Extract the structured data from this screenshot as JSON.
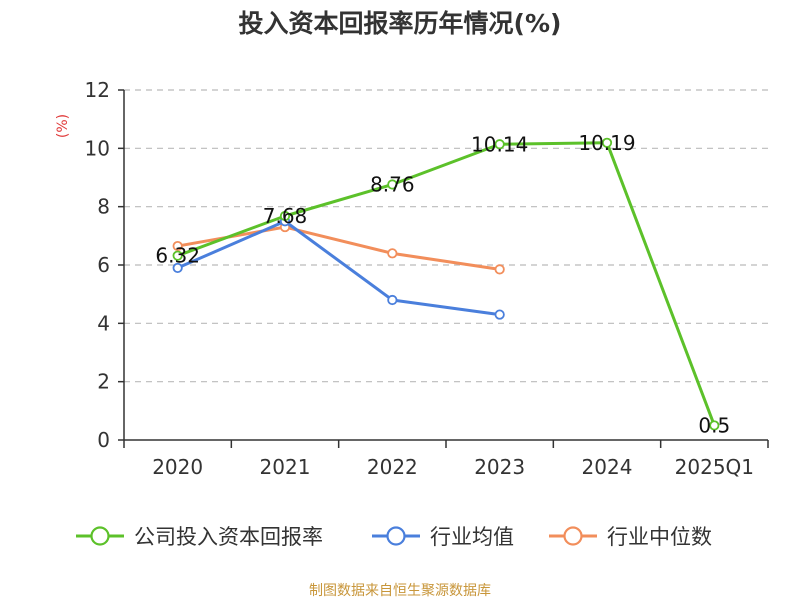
{
  "chart_data": {
    "type": "line",
    "title": "投入资本回报率历年情况(%)",
    "ylabel": "(%)",
    "xlabel": "",
    "categories": [
      "2020",
      "2021",
      "2022",
      "2023",
      "2024",
      "2025Q1"
    ],
    "ylim": [
      0,
      12
    ],
    "yticks": [
      0,
      2,
      4,
      6,
      8,
      10,
      12
    ],
    "grid": true,
    "legend_position": "bottom",
    "series": [
      {
        "name": "公司投入资本回报率",
        "color": "#5cc12a",
        "values": [
          6.32,
          7.68,
          8.76,
          10.14,
          10.19,
          0.5
        ],
        "labels": [
          "6.32",
          "7.68",
          "8.76",
          "10.14",
          "10.19",
          "0.5"
        ]
      },
      {
        "name": "行业均值",
        "color": "#4a7fdc",
        "values": [
          5.9,
          7.5,
          4.8,
          4.3,
          null,
          null
        ],
        "labels": []
      },
      {
        "name": "行业中位数",
        "color": "#f28e5b",
        "values": [
          6.65,
          7.3,
          6.4,
          5.85,
          null,
          null
        ],
        "labels": []
      }
    ]
  },
  "footer": {
    "source": "制图数据来自恒生聚源数据库"
  },
  "colors": {
    "axis": "#333333",
    "grid": "#bbbbbb"
  }
}
